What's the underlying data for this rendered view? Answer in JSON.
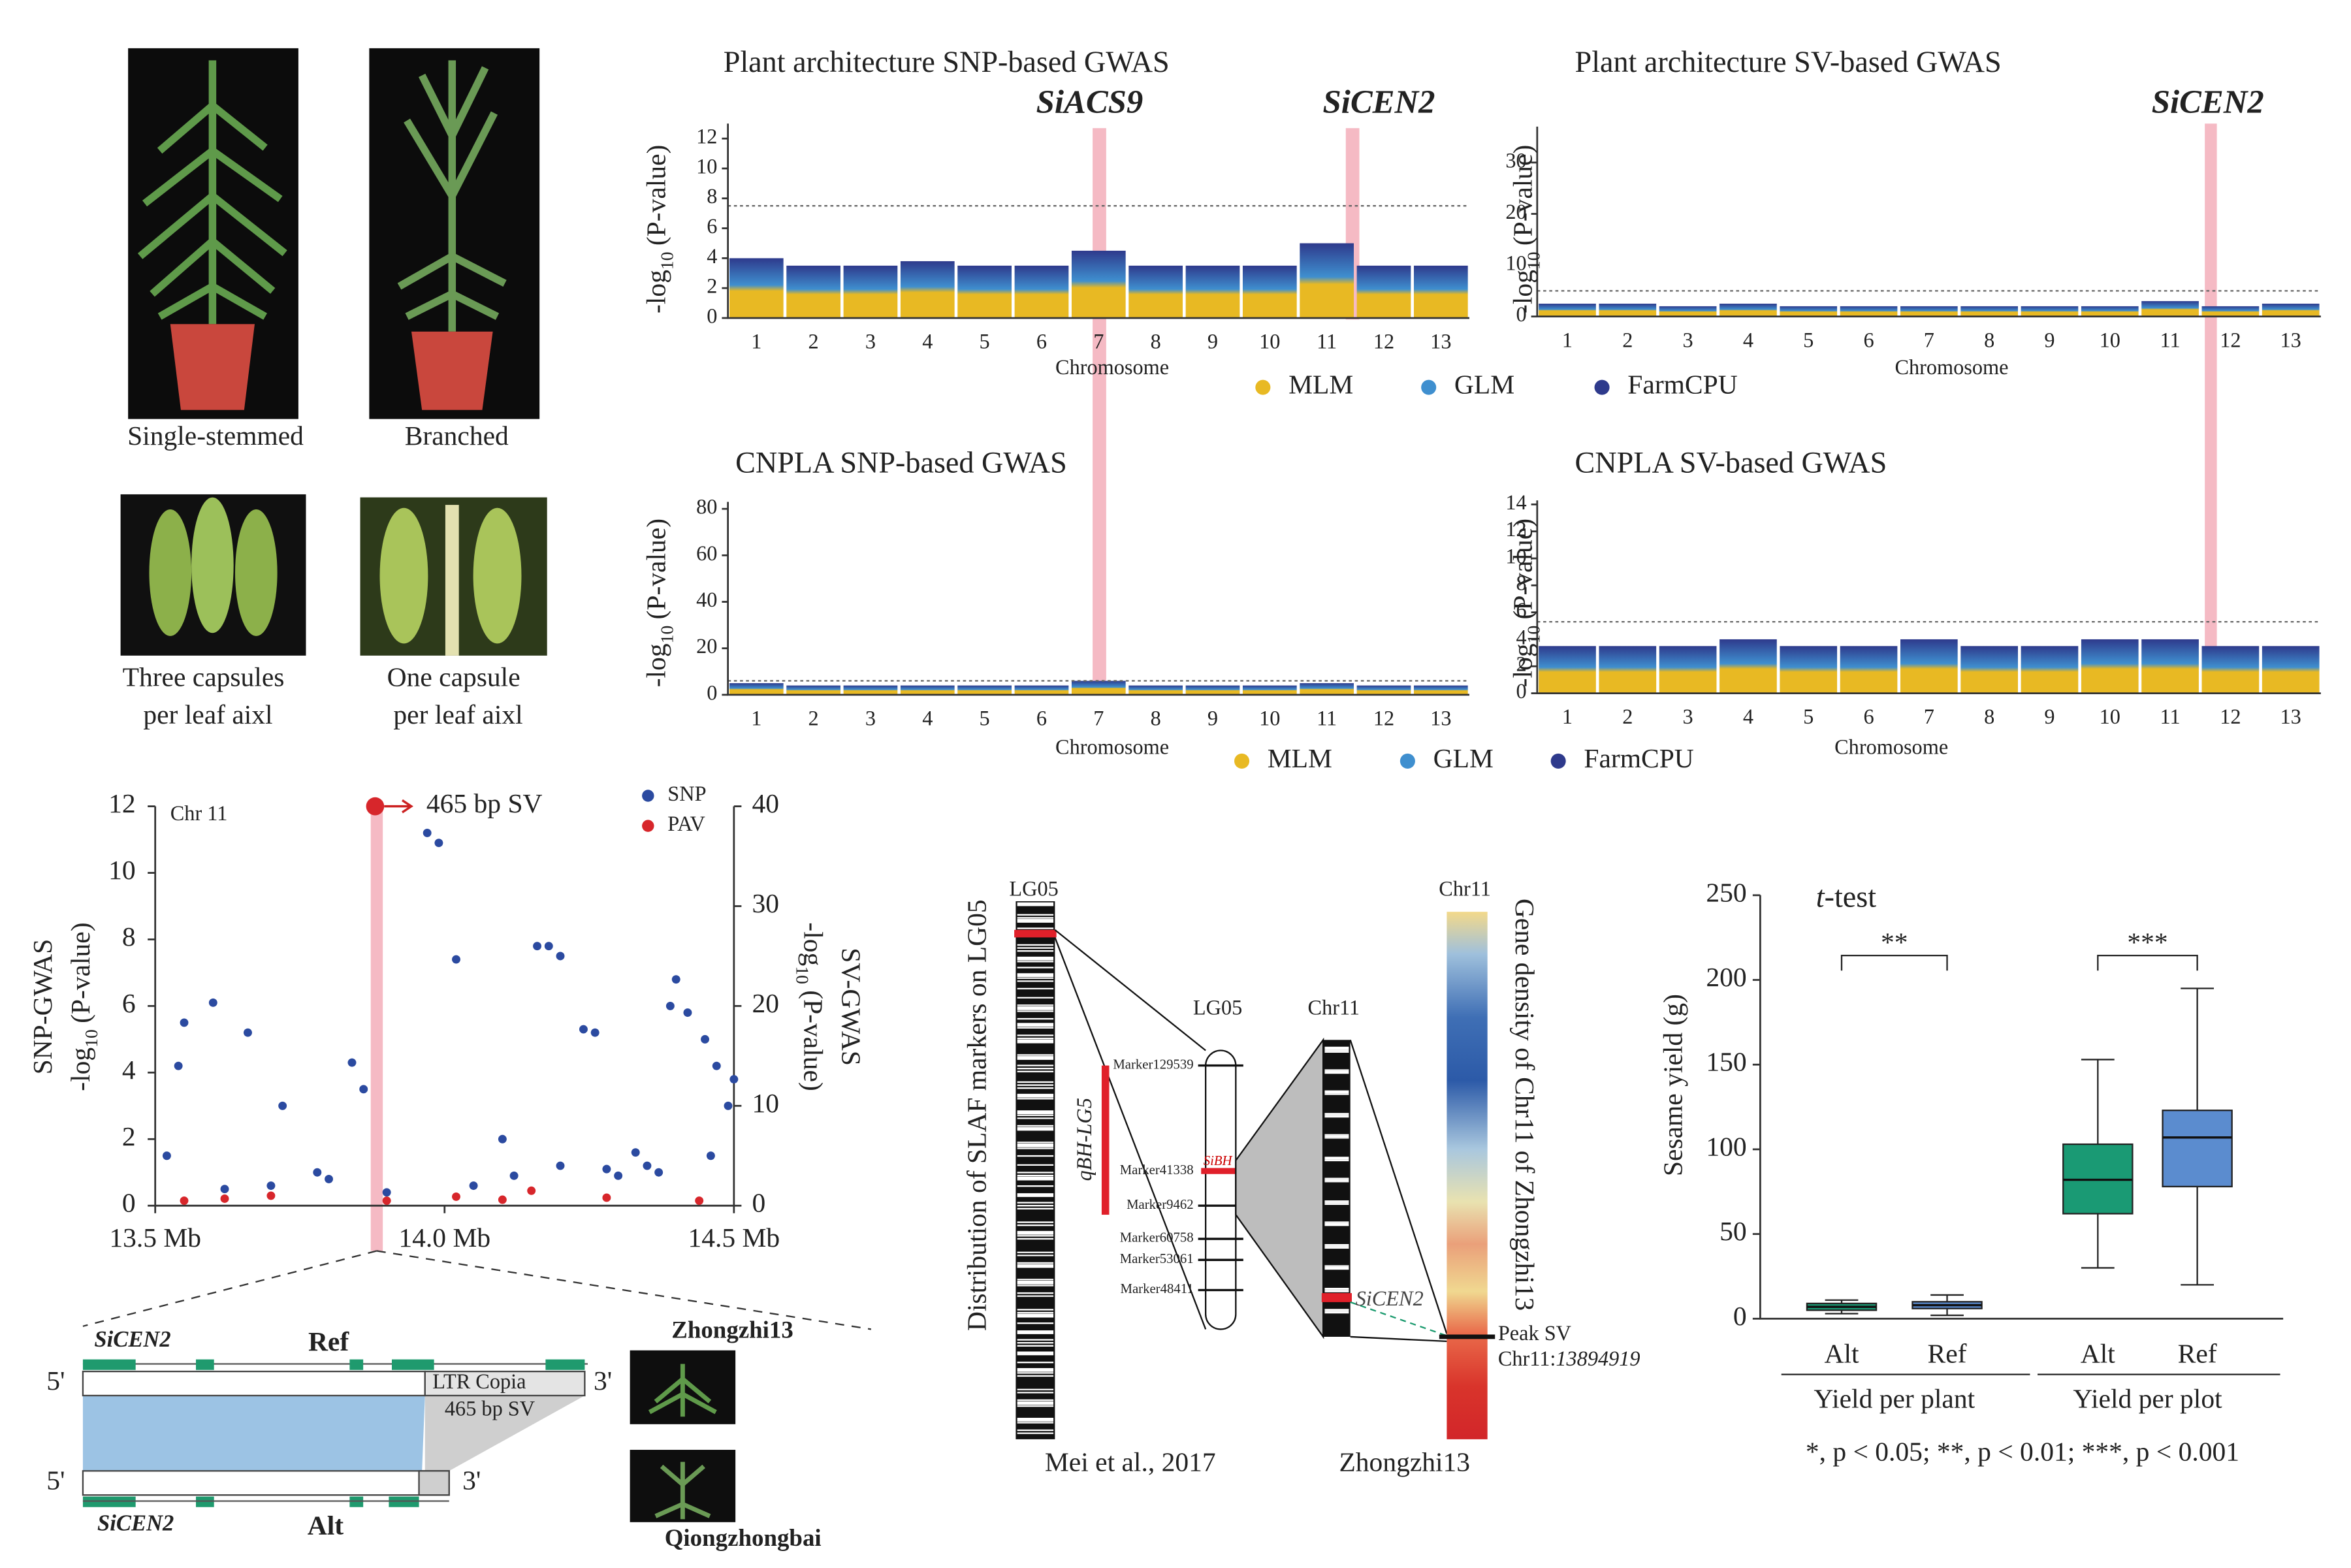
{
  "photos": {
    "labels": [
      "Single-stemmed",
      "Branched"
    ],
    "capsule_labels": [
      [
        "Three capsules",
        "per leaf aixl"
      ],
      [
        "One capsule",
        "per leaf aixl"
      ]
    ]
  },
  "chart_data": [
    {
      "type": "manhattan",
      "title": "Plant architecture  SNP-based GWAS",
      "genes": [
        "SiACS9",
        "SiCEN2"
      ],
      "ylabel": [
        "-log",
        "10",
        "(P-value)"
      ],
      "xlabel": "Chromosome",
      "categories": [
        "1",
        "2",
        "3",
        "4",
        "5",
        "6",
        "7",
        "8",
        "9",
        "10",
        "11",
        "12",
        "13"
      ],
      "values": [
        4,
        3.5,
        3.5,
        3.8,
        3.5,
        3.5,
        4.5,
        3.5,
        3.5,
        3.5,
        5,
        3.5,
        3.5
      ],
      "ylim": [
        0,
        13
      ],
      "yticks": [
        0,
        2,
        4,
        6,
        8,
        10,
        12
      ],
      "threshold": 7.5,
      "legend": true,
      "series": [
        {
          "name": "MLM",
          "color": "#e8b923"
        },
        {
          "name": "GLM",
          "color": "#3f8fcf"
        },
        {
          "name": "FarmCPU",
          "color": "#2e3a8c"
        }
      ]
    },
    {
      "type": "manhattan",
      "title": "Plant architecture  SV-based GWAS",
      "genes": [
        "SiCEN2"
      ],
      "ylabel": [
        "-log",
        "10",
        "(P-value)"
      ],
      "xlabel": "Chromosome",
      "categories": [
        "1",
        "2",
        "3",
        "4",
        "5",
        "6",
        "7",
        "8",
        "9",
        "10",
        "11",
        "12",
        "13"
      ],
      "values": [
        2.5,
        2.5,
        2,
        2.5,
        2,
        2,
        2,
        2,
        2,
        2,
        3,
        2,
        2.5
      ],
      "ylim": [
        0,
        37
      ],
      "yticks": [
        0,
        10,
        20,
        30
      ],
      "threshold": 5,
      "legend": false
    },
    {
      "type": "manhattan",
      "title": "CNPLA  SNP-based GWAS",
      "ylabel": [
        "-log",
        "10",
        "(P-value)"
      ],
      "xlabel": "Chromosome",
      "categories": [
        "1",
        "2",
        "3",
        "4",
        "5",
        "6",
        "7",
        "8",
        "9",
        "10",
        "11",
        "12",
        "13"
      ],
      "values": [
        5,
        4,
        4,
        4,
        4,
        4,
        6,
        4,
        4,
        4,
        5,
        4,
        4
      ],
      "ylim": [
        0,
        83
      ],
      "yticks": [
        0,
        20,
        40,
        60,
        80
      ],
      "threshold": 6,
      "legend": true,
      "series": [
        {
          "name": "MLM",
          "color": "#e8b923"
        },
        {
          "name": "GLM",
          "color": "#3f8fcf"
        },
        {
          "name": "FarmCPU",
          "color": "#2e3a8c"
        }
      ]
    },
    {
      "type": "manhattan",
      "title": "CNPLA  SV-based GWAS",
      "ylabel": [
        "-log",
        "10",
        "(P-value)"
      ],
      "xlabel": "Chromosome",
      "categories": [
        "1",
        "2",
        "3",
        "4",
        "5",
        "6",
        "7",
        "8",
        "9",
        "10",
        "11",
        "12",
        "13"
      ],
      "values": [
        3.5,
        3.5,
        3.5,
        4,
        3.5,
        3.5,
        4,
        3.5,
        3.5,
        4,
        4,
        3.5,
        3.5
      ],
      "ylim": [
        0,
        14.3
      ],
      "yticks": [
        0,
        2,
        4,
        6,
        8,
        10,
        12,
        14
      ],
      "threshold": 5.3,
      "legend": false
    },
    {
      "type": "scatter",
      "label": "Chr 11",
      "ylabel_title": "SNP-GWAS",
      "ylabel": [
        "-log",
        "10",
        "(P-value)"
      ],
      "y2label_title": "SV-GWAS",
      "y2label": [
        "-log",
        "10",
        "(P-value)"
      ],
      "xlim": [
        13.5,
        14.5
      ],
      "xticks": [
        {
          "value": 13.5,
          "label": "13.5 Mb"
        },
        {
          "value": 14.0,
          "label": "14.0 Mb"
        },
        {
          "value": 14.5,
          "label": "14.5 Mb"
        }
      ],
      "ylim": [
        0,
        12
      ],
      "yticks": [
        0,
        2,
        4,
        6,
        8,
        10,
        12
      ],
      "y2lim": [
        0,
        40
      ],
      "y2ticks": [
        0,
        10,
        20,
        30,
        40
      ],
      "series": [
        {
          "name": "SNP",
          "color": "#2b4aa0",
          "x": [
            13.55,
            13.54,
            13.6,
            13.66,
            13.72,
            13.78,
            13.84,
            13.86,
            13.97,
            13.99,
            14.02,
            14.1,
            14.16,
            14.18,
            14.2,
            14.24,
            14.26,
            14.4,
            14.39,
            14.42,
            14.45,
            14.47,
            14.49,
            14.5,
            13.52,
            13.62,
            13.8,
            14.05,
            14.2,
            14.3,
            14.33,
            14.35,
            14.37,
            14.46,
            13.7,
            13.9,
            14.12,
            14.28
          ],
          "y": [
            5.5,
            4.2,
            6.1,
            5.2,
            3.0,
            1.0,
            4.3,
            3.5,
            11.2,
            10.9,
            7.4,
            2.0,
            7.8,
            7.8,
            7.5,
            5.3,
            5.2,
            6.8,
            6.0,
            5.8,
            5.0,
            4.2,
            3.0,
            3.8,
            1.5,
            0.5,
            0.8,
            0.6,
            1.2,
            0.9,
            1.6,
            1.2,
            1.0,
            1.5,
            0.6,
            0.4,
            0.9,
            1.1
          ]
        },
        {
          "name": "PAV",
          "color": "#d7262b",
          "axis": "y2",
          "x": [
            13.55,
            13.7,
            13.9,
            14.1,
            14.15,
            14.28,
            14.44,
            13.62,
            14.02
          ],
          "y": [
            0.5,
            1,
            0.5,
            0.6,
            1.5,
            0.8,
            0.5,
            0.7,
            0.9
          ]
        }
      ],
      "annotation": {
        "text": "465 bp SV",
        "x": 13.88,
        "y": 40,
        "axis": "y2"
      }
    },
    {
      "type": "box",
      "title": [
        "t",
        "-test"
      ],
      "ylabel": "Sesame yield (g)",
      "ylim": [
        0,
        250
      ],
      "yticks": [
        0,
        50,
        100,
        150,
        200,
        250
      ],
      "categories": [
        "Alt",
        "Ref",
        "Alt",
        "Ref"
      ],
      "groups": [
        "Yield per plant",
        "Yield per plot"
      ],
      "colors": [
        "#1a9a74",
        "#5b8ccf",
        "#1a9a74",
        "#5b8ccf"
      ],
      "boxes": [
        {
          "min": 3,
          "q1": 5,
          "median": 7,
          "q3": 9,
          "max": 11
        },
        {
          "min": 2,
          "q1": 6,
          "median": 8,
          "q3": 10,
          "max": 14
        },
        {
          "min": 30,
          "q1": 62,
          "median": 82,
          "q3": 103,
          "max": 153
        },
        {
          "min": 20,
          "q1": 78,
          "median": 107,
          "q3": 123,
          "max": 195
        }
      ],
      "significance": [
        "**",
        "***"
      ],
      "footnote": "*, p < 0.05; **, p < 0.01; ***, p < 0.001"
    }
  ],
  "gene_structure": {
    "gene": [
      "SiCEN2",
      "SiCEN2"
    ],
    "ref": "Ref",
    "alt": "Alt",
    "five": [
      "5'",
      "5'"
    ],
    "three": [
      "3'",
      "3'"
    ],
    "ltr": "LTR Copia",
    "sv": "465 bp SV",
    "cultivars": [
      "Zhongzhi13",
      "Qiongzhongbai"
    ]
  },
  "map": {
    "lg05": [
      "LG05",
      "LG05"
    ],
    "lg05_label": "Distribution of SLAF markers on LG05",
    "source": "Mei et al., 2017",
    "markers": [
      "Marker129539",
      "Marker41338",
      "Marker9462",
      "Marker60758",
      "Marker53061",
      "Marker48411"
    ],
    "sibh": "SiBH",
    "qtl": "qBH-LG5",
    "chr11": [
      "Chr11",
      "Chr11"
    ],
    "sicen2": "SiCEN2",
    "density_label": "Gene density of Chr11 of Zhongzhi13",
    "peak": [
      "Peak SV",
      "Chr11:",
      "13894919"
    ],
    "cultivar": "Zhongzhi13"
  }
}
